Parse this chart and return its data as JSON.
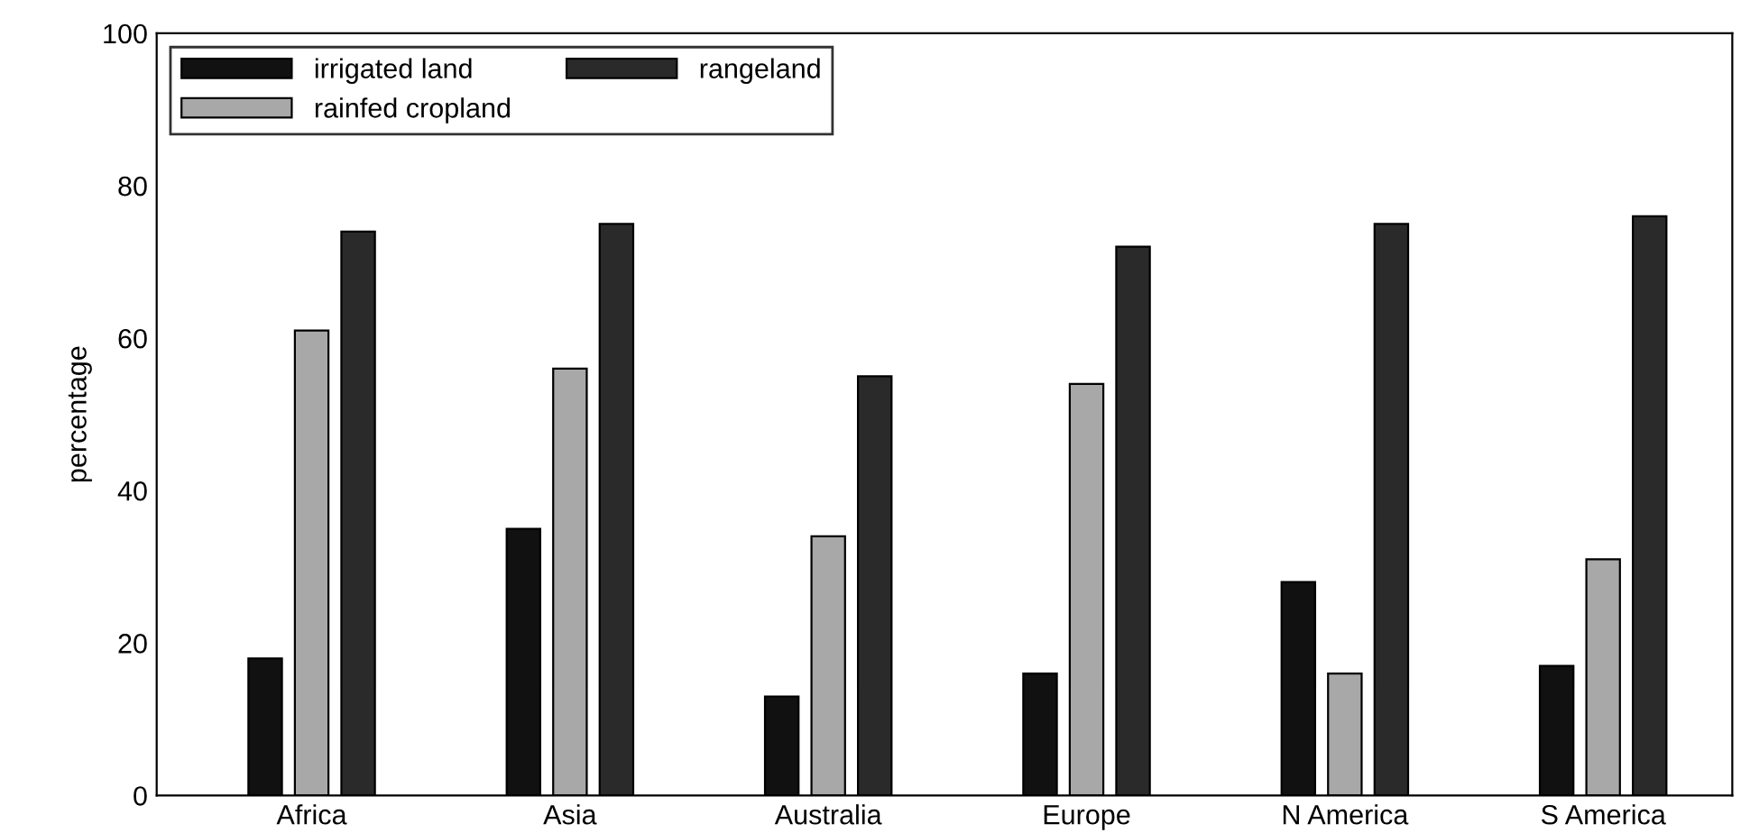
{
  "chart_data": {
    "type": "bar",
    "ylabel": "percentage",
    "categories": [
      "Africa",
      "Asia",
      "Australia",
      "Europe",
      "N America",
      "S America"
    ],
    "series": [
      {
        "name": "irrigated land",
        "color": "#111111",
        "values": [
          18,
          35,
          13,
          16,
          28,
          17
        ]
      },
      {
        "name": "rainfed cropland",
        "color": "#a8a8a8",
        "values": [
          61,
          56,
          34,
          54,
          16,
          31
        ]
      },
      {
        "name": "rangeland",
        "color": "#2a2a2a",
        "values": [
          74,
          75,
          55,
          72,
          75,
          76
        ]
      }
    ],
    "ylim": [
      0,
      100
    ],
    "yticks": [
      0,
      20,
      40,
      60,
      80,
      100
    ],
    "grid": false,
    "legend": "top left"
  }
}
